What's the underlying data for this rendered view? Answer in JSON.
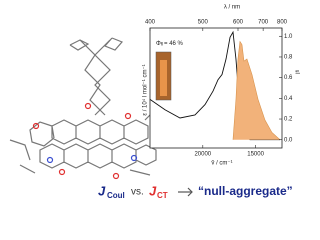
{
  "chart_data": {
    "type": "line",
    "x2label": "λ / nm",
    "xlabel": "ṽ / cm⁻¹",
    "ylabel": "ε / 10⁴ l mol⁻¹ cm⁻¹",
    "y2label": "I",
    "y2label_sub": "fl",
    "annotation": {
      "symbol": "Φ",
      "sub": "fl",
      "text": "= 46 %"
    },
    "xlim": [
      25000,
      12500
    ],
    "xticks": [
      20000,
      15000
    ],
    "x2ticks": [
      400,
      500,
      600,
      700,
      800
    ],
    "ylim": [
      -0.08,
      1.08
    ],
    "y2lim": [
      -0.08,
      1.08
    ],
    "y2ticks": [
      {
        "value": 0,
        "label": "0.0"
      },
      0.2,
      0.4,
      0.6,
      0.8,
      {
        "value": 1,
        "label": "1.0"
      }
    ],
    "series": [
      {
        "color": "#111111",
        "x": [
          25000,
          23580,
          22160,
          20740,
          19790,
          19030,
          18560,
          18180,
          17800,
          17420,
          17140,
          16860,
          16480,
          16100,
          15530,
          12690
        ],
        "values": [
          0.39,
          0.29,
          0.21,
          0.24,
          0.34,
          0.47,
          0.58,
          0.63,
          0.78,
          0.99,
          1.04,
          0.78,
          0.29,
          0.05,
          0,
          0
        ]
      },
      {
        "color": "#f2b27a",
        "fill": true,
        "axis": "y2",
        "x": [
          17140,
          16860,
          16670,
          16480,
          16290,
          16100,
          15820,
          15340,
          14770,
          14110,
          13450,
          12690
        ],
        "values": [
          0,
          0.39,
          0.78,
          0.95,
          0.92,
          0.76,
          0.78,
          0.63,
          0.39,
          0.19,
          0.07,
          0
        ]
      }
    ]
  },
  "caption": {
    "j1": "J",
    "j1_sub": "Coul",
    "vs": "vs.",
    "j2": "J",
    "j2_sub": "CT",
    "result": "“null-aggregate”"
  }
}
